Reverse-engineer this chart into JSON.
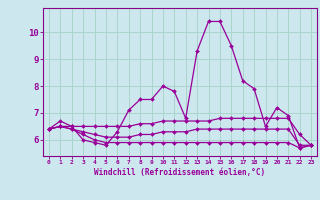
{
  "xlabel": "Windchill (Refroidissement éolien,°C)",
  "background_color": "#cce8ee",
  "grid_color": "#aad4cc",
  "line_color": "#990099",
  "spine_color": "#880088",
  "x_ticks": [
    0,
    1,
    2,
    3,
    4,
    5,
    6,
    7,
    8,
    9,
    10,
    11,
    12,
    13,
    14,
    15,
    16,
    17,
    18,
    19,
    20,
    21,
    22,
    23
  ],
  "y_ticks": [
    6,
    7,
    8,
    9,
    10
  ],
  "ylim": [
    5.4,
    10.9
  ],
  "xlim": [
    -0.5,
    23.5
  ],
  "series": [
    [
      6.4,
      6.7,
      6.5,
      6.0,
      5.9,
      5.8,
      6.3,
      7.1,
      7.5,
      7.5,
      8.0,
      7.8,
      6.8,
      9.3,
      10.4,
      10.4,
      9.5,
      8.2,
      7.9,
      6.5,
      7.2,
      6.9,
      5.7,
      5.8
    ],
    [
      6.4,
      6.5,
      6.5,
      6.5,
      6.5,
      6.5,
      6.5,
      6.5,
      6.6,
      6.6,
      6.7,
      6.7,
      6.7,
      6.7,
      6.7,
      6.8,
      6.8,
      6.8,
      6.8,
      6.8,
      6.8,
      6.8,
      6.2,
      5.8
    ],
    [
      6.4,
      6.5,
      6.4,
      6.3,
      6.2,
      6.1,
      6.1,
      6.1,
      6.2,
      6.2,
      6.3,
      6.3,
      6.3,
      6.4,
      6.4,
      6.4,
      6.4,
      6.4,
      6.4,
      6.4,
      6.4,
      6.4,
      5.8,
      5.8
    ],
    [
      6.4,
      6.5,
      6.4,
      6.2,
      6.0,
      5.9,
      5.9,
      5.9,
      5.9,
      5.9,
      5.9,
      5.9,
      5.9,
      5.9,
      5.9,
      5.9,
      5.9,
      5.9,
      5.9,
      5.9,
      5.9,
      5.9,
      5.7,
      5.8
    ]
  ]
}
